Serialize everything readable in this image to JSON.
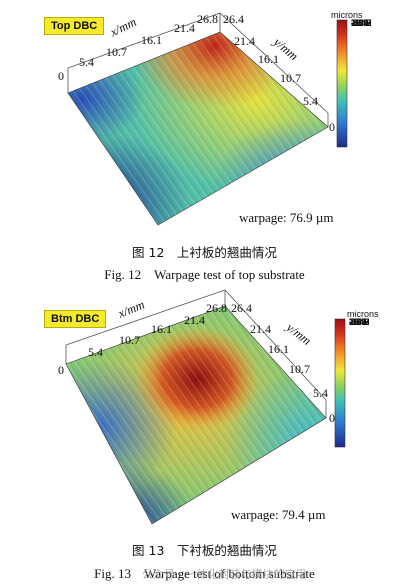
{
  "figures": [
    {
      "badge": "Top DBC",
      "x_axis_label": "x/mm",
      "y_axis_label": "y/mm",
      "x_ticks": [
        "0",
        "5.4",
        "10.7",
        "16.1",
        "21.4",
        "26.8"
      ],
      "y_ticks": [
        "26.4",
        "21.4",
        "16.1",
        "10.7",
        "5.4",
        "0"
      ],
      "colorbar_title": "microns",
      "colorbar_ticks": [
        "39.6",
        "33.1",
        "26.7",
        "20.3",
        "13.9",
        "7.5",
        "1.0",
        "-5.4",
        "-11.8",
        "-18.2",
        "-24.7",
        "-37.5",
        "-43.9"
      ],
      "warpage_label": "warpage: 76.9 µm",
      "caption_cn": "图 12　上衬板的翘曲情况",
      "caption_en": "Fig. 12　Warpage test of top substrate"
    },
    {
      "badge": "Btm DBC",
      "x_axis_label": "x/mm",
      "y_axis_label": "y/mm",
      "x_ticks": [
        "0",
        "5.4",
        "10.7",
        "16.1",
        "21.4",
        "26.8"
      ],
      "y_ticks": [
        "26.4",
        "21.4",
        "16.1",
        "10.7",
        "5.4",
        "0"
      ],
      "colorbar_title": "microns",
      "colorbar_ticks": [
        "39.6",
        "33.1",
        "26.7",
        "20.3",
        "13.9",
        "7.5",
        "1.0",
        "-5.4",
        "-11.8",
        "-18.2",
        "-24.7",
        "-37.5",
        "-43.9"
      ],
      "warpage_label": "warpage: 79.4 µm",
      "caption_cn": "图 13　下衬板的翘曲情况",
      "caption_en": "Fig. 13　Warpage test of bottom substrate"
    }
  ],
  "watermark": "公众号 · 一体化封装与模块的应用",
  "colors": {
    "badge_bg": "#f5ea2c",
    "colorbar_top": "#9b0f14",
    "colorbar_mid": "#f2e53a",
    "colorbar_bottom": "#1d2a8a"
  }
}
